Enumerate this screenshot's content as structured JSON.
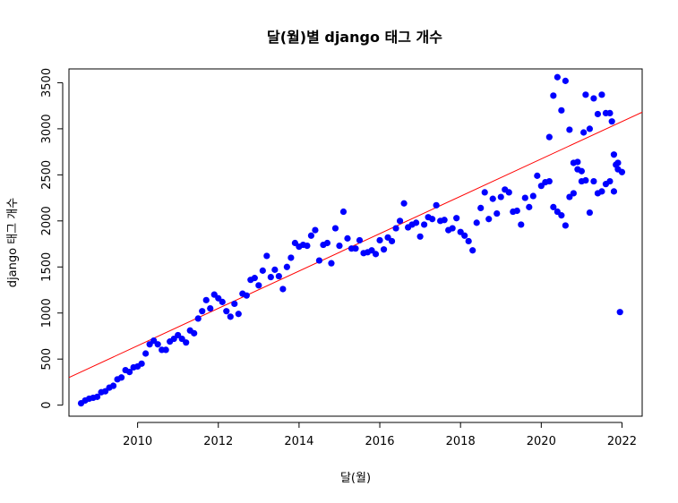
{
  "chart_data": {
    "type": "scatter",
    "title": "달(월)별 django 태그 개수",
    "xlabel": "달(월)",
    "ylabel": "django 태그 개수",
    "xlim": [
      2008.3,
      2022.5
    ],
    "ylim": [
      -120,
      3650
    ],
    "x_ticks": [
      2010,
      2012,
      2014,
      2016,
      2018,
      2020,
      2022
    ],
    "y_ticks": [
      0,
      500,
      1000,
      1500,
      2000,
      2500,
      3000,
      3500
    ],
    "grid": false,
    "point_color": "#0000ff",
    "trend_color": "#ff0000",
    "trend_line": {
      "x": [
        2008.3,
        2022.5
      ],
      "y": [
        300,
        3180
      ]
    },
    "points": [
      [
        2008.6,
        20
      ],
      [
        2008.7,
        50
      ],
      [
        2008.8,
        70
      ],
      [
        2008.9,
        80
      ],
      [
        2009.0,
        90
      ],
      [
        2009.1,
        140
      ],
      [
        2009.2,
        150
      ],
      [
        2009.3,
        190
      ],
      [
        2009.4,
        210
      ],
      [
        2009.5,
        280
      ],
      [
        2009.6,
        300
      ],
      [
        2009.7,
        380
      ],
      [
        2009.8,
        360
      ],
      [
        2009.9,
        410
      ],
      [
        2010.0,
        420
      ],
      [
        2010.1,
        450
      ],
      [
        2010.2,
        560
      ],
      [
        2010.3,
        660
      ],
      [
        2010.4,
        700
      ],
      [
        2010.5,
        660
      ],
      [
        2010.6,
        600
      ],
      [
        2010.7,
        600
      ],
      [
        2010.8,
        690
      ],
      [
        2010.9,
        720
      ],
      [
        2011.0,
        760
      ],
      [
        2011.1,
        720
      ],
      [
        2011.2,
        680
      ],
      [
        2011.3,
        810
      ],
      [
        2011.4,
        780
      ],
      [
        2011.5,
        940
      ],
      [
        2011.6,
        1020
      ],
      [
        2011.7,
        1140
      ],
      [
        2011.8,
        1050
      ],
      [
        2011.9,
        1200
      ],
      [
        2012.0,
        1160
      ],
      [
        2012.1,
        1120
      ],
      [
        2012.2,
        1020
      ],
      [
        2012.3,
        960
      ],
      [
        2012.4,
        1100
      ],
      [
        2012.5,
        990
      ],
      [
        2012.6,
        1210
      ],
      [
        2012.7,
        1190
      ],
      [
        2012.8,
        1360
      ],
      [
        2012.9,
        1380
      ],
      [
        2013.0,
        1300
      ],
      [
        2013.1,
        1460
      ],
      [
        2013.2,
        1620
      ],
      [
        2013.3,
        1390
      ],
      [
        2013.4,
        1470
      ],
      [
        2013.5,
        1400
      ],
      [
        2013.6,
        1260
      ],
      [
        2013.7,
        1500
      ],
      [
        2013.8,
        1600
      ],
      [
        2013.9,
        1760
      ],
      [
        2014.0,
        1720
      ],
      [
        2014.1,
        1740
      ],
      [
        2014.2,
        1730
      ],
      [
        2014.3,
        1840
      ],
      [
        2014.4,
        1900
      ],
      [
        2014.5,
        1570
      ],
      [
        2014.6,
        1740
      ],
      [
        2014.7,
        1760
      ],
      [
        2014.8,
        1540
      ],
      [
        2014.9,
        1920
      ],
      [
        2015.0,
        1730
      ],
      [
        2015.1,
        2100
      ],
      [
        2015.2,
        1810
      ],
      [
        2015.3,
        1700
      ],
      [
        2015.4,
        1700
      ],
      [
        2015.5,
        1790
      ],
      [
        2015.6,
        1650
      ],
      [
        2015.7,
        1660
      ],
      [
        2015.8,
        1680
      ],
      [
        2015.9,
        1640
      ],
      [
        2016.0,
        1790
      ],
      [
        2016.1,
        1690
      ],
      [
        2016.2,
        1820
      ],
      [
        2016.3,
        1780
      ],
      [
        2016.4,
        1920
      ],
      [
        2016.5,
        2000
      ],
      [
        2016.6,
        2190
      ],
      [
        2016.7,
        1930
      ],
      [
        2016.8,
        1960
      ],
      [
        2016.9,
        1980
      ],
      [
        2017.0,
        1830
      ],
      [
        2017.1,
        1960
      ],
      [
        2017.2,
        2040
      ],
      [
        2017.3,
        2020
      ],
      [
        2017.4,
        2170
      ],
      [
        2017.5,
        2000
      ],
      [
        2017.6,
        2010
      ],
      [
        2017.7,
        1900
      ],
      [
        2017.8,
        1920
      ],
      [
        2017.9,
        2030
      ],
      [
        2018.0,
        1880
      ],
      [
        2018.1,
        1840
      ],
      [
        2018.2,
        1780
      ],
      [
        2018.3,
        1680
      ],
      [
        2018.4,
        1980
      ],
      [
        2018.5,
        2140
      ],
      [
        2018.6,
        2310
      ],
      [
        2018.7,
        2020
      ],
      [
        2018.8,
        2240
      ],
      [
        2018.9,
        2080
      ],
      [
        2019.0,
        2260
      ],
      [
        2019.1,
        2340
      ],
      [
        2019.2,
        2310
      ],
      [
        2019.3,
        2100
      ],
      [
        2019.4,
        2110
      ],
      [
        2019.5,
        1960
      ],
      [
        2019.6,
        2250
      ],
      [
        2019.7,
        2150
      ],
      [
        2019.8,
        2270
      ],
      [
        2019.9,
        2490
      ],
      [
        2020.0,
        2380
      ],
      [
        2020.1,
        2420
      ],
      [
        2020.2,
        2430
      ],
      [
        2020.3,
        2150
      ],
      [
        2020.4,
        2100
      ],
      [
        2020.5,
        2060
      ],
      [
        2020.6,
        1950
      ],
      [
        2020.7,
        2260
      ],
      [
        2020.8,
        2300
      ],
      [
        2020.9,
        2560
      ],
      [
        2021.0,
        2540
      ],
      [
        2021.1,
        2440
      ],
      [
        2021.2,
        2090
      ],
      [
        2021.3,
        2430
      ],
      [
        2021.4,
        2300
      ],
      [
        2021.5,
        2320
      ],
      [
        2021.6,
        2400
      ],
      [
        2021.7,
        2430
      ],
      [
        2021.8,
        2320
      ],
      [
        2021.9,
        2560
      ],
      [
        2022.0,
        2530
      ],
      [
        2020.2,
        2910
      ],
      [
        2020.3,
        3360
      ],
      [
        2020.4,
        3560
      ],
      [
        2020.5,
        3200
      ],
      [
        2020.6,
        3520
      ],
      [
        2020.7,
        2990
      ],
      [
        2020.8,
        2630
      ],
      [
        2020.9,
        2640
      ],
      [
        2021.0,
        2430
      ],
      [
        2021.05,
        2960
      ],
      [
        2021.1,
        3370
      ],
      [
        2021.2,
        3000
      ],
      [
        2021.3,
        3330
      ],
      [
        2021.4,
        3160
      ],
      [
        2021.5,
        3370
      ],
      [
        2021.6,
        3170
      ],
      [
        2021.7,
        3170
      ],
      [
        2021.75,
        3080
      ],
      [
        2021.8,
        2720
      ],
      [
        2021.85,
        2610
      ],
      [
        2021.9,
        2630
      ],
      [
        2021.95,
        1010
      ]
    ]
  }
}
